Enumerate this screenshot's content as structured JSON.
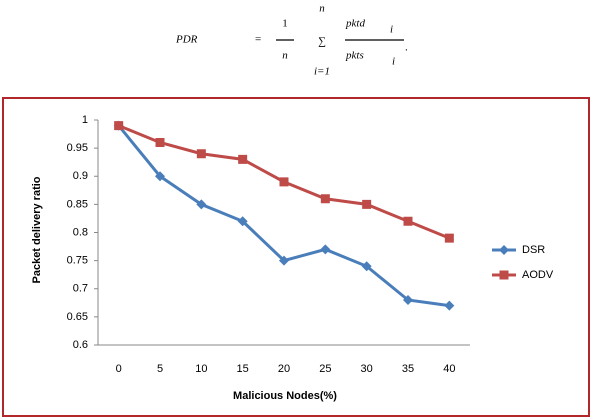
{
  "formula": {
    "lhs": "PDR",
    "eq": "=",
    "num": "1",
    "den": "n",
    "sum": "∑",
    "upper": "n",
    "lower": "i=1",
    "frac_num": "pktd",
    "num_sub": "i",
    "frac_den": "pkts",
    "den_sub": "i",
    "end": "."
  },
  "chart_data": {
    "type": "line",
    "x_label": "Malicious Nodes(%)",
    "y_label": "Packet delivery ratio",
    "categories": [
      "0",
      "5",
      "10",
      "15",
      "20",
      "25",
      "30",
      "35",
      "40"
    ],
    "series": [
      {
        "name": "DSR",
        "color": "#4a7ebb",
        "marker": "diamond",
        "values": [
          0.99,
          0.9,
          0.85,
          0.82,
          0.75,
          0.77,
          0.74,
          0.68,
          0.67
        ]
      },
      {
        "name": "AODV",
        "color": "#be4b48",
        "marker": "square",
        "values": [
          0.99,
          0.96,
          0.94,
          0.93,
          0.89,
          0.86,
          0.85,
          0.82,
          0.79
        ]
      }
    ],
    "ylim": [
      0.6,
      1
    ],
    "yticks": [
      0.6,
      0.65,
      0.7,
      0.75,
      0.8,
      0.85,
      0.9,
      0.95,
      1
    ],
    "grid": false,
    "legend": "right"
  }
}
